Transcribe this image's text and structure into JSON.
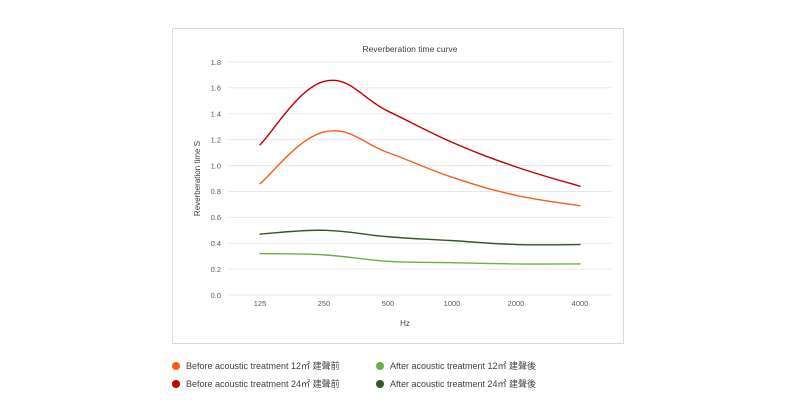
{
  "chart_data": {
    "type": "line",
    "title": "Reverberation time curve",
    "xlabel": "Hz",
    "ylabel": "Reverberation time  S",
    "categories": [
      "125",
      "250",
      "500",
      "1000",
      "2000",
      "4000"
    ],
    "ylim": [
      0,
      1.8
    ],
    "yticks": [
      "0.0",
      "0.2",
      "0.4",
      "0.6",
      "0.8",
      "1.0",
      "1.2",
      "1.4",
      "1.6",
      "1.8"
    ],
    "grid": true,
    "smooth": true,
    "legend_position": "bottom",
    "series": [
      {
        "name": "Before acoustic treatment 12㎡ 建聲前",
        "color": "#f2601e",
        "values": [
          0.86,
          1.26,
          1.1,
          0.91,
          0.77,
          0.69
        ]
      },
      {
        "name": "Before acoustic treatment 24㎡ 建聲前",
        "color": "#c00000",
        "values": [
          1.16,
          1.65,
          1.42,
          1.18,
          0.99,
          0.84
        ]
      },
      {
        "name": "After acoustic treatment 12㎡ 建聲後",
        "color": "#70ad47",
        "values": [
          0.32,
          0.31,
          0.26,
          0.25,
          0.24,
          0.24
        ]
      },
      {
        "name": "After acoustic treatment 24㎡ 建聲後",
        "color": "#375623",
        "values": [
          0.47,
          0.5,
          0.45,
          0.42,
          0.39,
          0.39
        ]
      }
    ]
  }
}
